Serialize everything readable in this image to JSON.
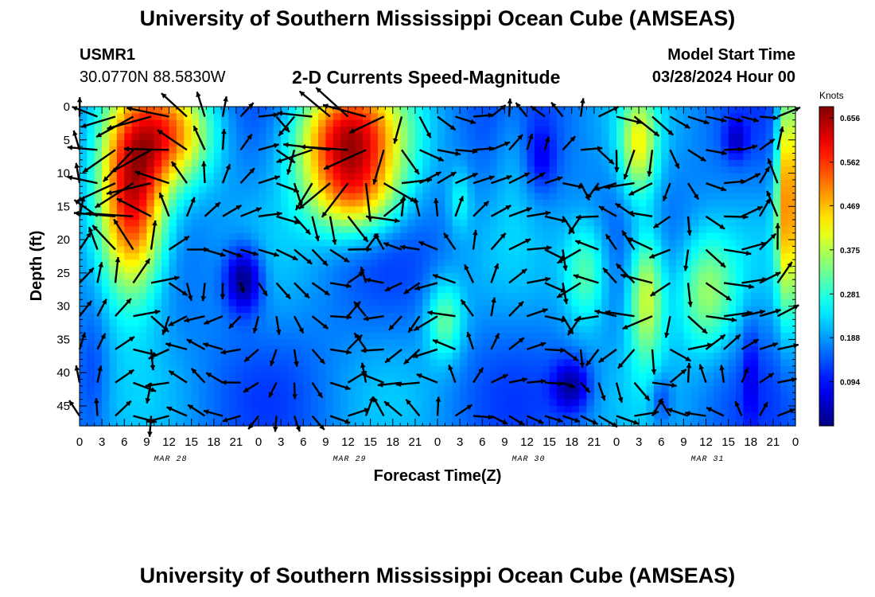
{
  "header": {
    "title": "University of Southern Mississippi Ocean Cube (AMSEAS)",
    "station_id": "USMR1",
    "coordinates": "30.0770N  88.5830W",
    "plot_title": "2-D Currents Speed-Magnitude",
    "model_start_label": "Model Start Time",
    "model_start_value": "03/28/2024 Hour 00"
  },
  "footer": {
    "title": "University of Southern Mississippi Ocean Cube (AMSEAS)"
  },
  "chart_data": {
    "type": "heatmap",
    "xlabel": "Forecast Time(Z)",
    "ylabel": "Depth (ft)",
    "x_tick_labels": [
      "0",
      "3",
      "6",
      "9",
      "12",
      "15",
      "18",
      "21",
      "0",
      "3",
      "6",
      "9",
      "12",
      "15",
      "18",
      "21",
      "0",
      "3",
      "6",
      "9",
      "12",
      "15",
      "18",
      "21",
      "0",
      "3",
      "6",
      "9",
      "12",
      "15",
      "18",
      "21",
      "0"
    ],
    "x_range_hours": [
      0,
      96
    ],
    "date_labels": [
      {
        "label": "MAR 28",
        "hour": 12
      },
      {
        "label": "MAR 29",
        "hour": 36
      },
      {
        "label": "MAR 30",
        "hour": 60
      },
      {
        "label": "MAR 31",
        "hour": 84
      }
    ],
    "y_ticks": [
      0,
      5,
      10,
      15,
      20,
      25,
      30,
      35,
      40,
      45
    ],
    "y_range": [
      0,
      48
    ],
    "y_reversed": true,
    "colorbar": {
      "unit": "Knots",
      "min": 0.0,
      "max": 0.68,
      "tick_values": [
        0.094,
        0.188,
        0.281,
        0.375,
        0.469,
        0.562,
        0.656
      ],
      "tick_labels": [
        "0.094",
        "0.188",
        "0.281",
        "0.375",
        "0.469",
        "0.562",
        "0.656"
      ],
      "colormap": "jet"
    },
    "speed_features_knots": [
      {
        "hour_center": 7,
        "depth_center": 15,
        "hour_spread": 4.5,
        "depth_spread": 14,
        "speed": 0.45
      },
      {
        "hour_center": 12,
        "depth_center": 4,
        "hour_spread": 6,
        "depth_spread": 8,
        "speed": 0.3
      },
      {
        "hour_center": 36,
        "depth_center": 5,
        "hour_spread": 7,
        "depth_spread": 9,
        "speed": 0.45
      },
      {
        "hour_center": 37,
        "depth_center": 14,
        "hour_spread": 6,
        "depth_spread": 6,
        "speed": 0.2
      },
      {
        "hour_center": 49,
        "depth_center": 32,
        "hour_spread": 2.5,
        "depth_spread": 6,
        "speed": 0.15
      },
      {
        "hour_center": 51,
        "depth_center": 14,
        "hour_spread": 1.5,
        "depth_spread": 5,
        "speed": 0.08
      },
      {
        "hour_center": 58,
        "depth_center": 5,
        "hour_spread": 2.5,
        "depth_spread": 12,
        "speed": 0.05
      },
      {
        "hour_center": 68,
        "depth_center": 25,
        "hour_spread": 3,
        "depth_spread": 8,
        "speed": 0.15
      },
      {
        "hour_center": 75,
        "depth_center": 6,
        "hour_spread": 2.5,
        "depth_spread": 8,
        "speed": 0.22
      },
      {
        "hour_center": 76,
        "depth_center": 28,
        "hour_spread": 2.5,
        "depth_spread": 10,
        "speed": 0.25
      },
      {
        "hour_center": 84,
        "depth_center": 28,
        "hour_spread": 4,
        "depth_spread": 9,
        "speed": 0.18
      },
      {
        "hour_center": 95,
        "depth_center": 12,
        "hour_spread": 1.5,
        "depth_spread": 18,
        "speed": 0.35
      }
    ],
    "slow_features_knots": [
      {
        "hour_center": 22,
        "depth_center": 26,
        "hour_spread": 2.5,
        "depth_spread": 5,
        "speed": -0.2
      },
      {
        "hour_center": 66,
        "depth_center": 42,
        "hour_spread": 2.5,
        "depth_spread": 4,
        "speed": -0.15
      },
      {
        "hour_center": 62,
        "depth_center": 8,
        "hour_spread": 2,
        "depth_spread": 5,
        "speed": -0.08
      },
      {
        "hour_center": 88,
        "depth_center": 5,
        "hour_spread": 1.5,
        "depth_spread": 3,
        "speed": -0.1
      },
      {
        "hour_center": 78,
        "depth_center": 44,
        "hour_spread": 1.5,
        "depth_spread": 4,
        "speed": -0.08
      },
      {
        "hour_center": 90,
        "depth_center": 40,
        "hour_spread": 1,
        "depth_spread": 8,
        "speed": -0.07
      },
      {
        "hour_center": 2,
        "depth_center": 40,
        "hour_spread": 2,
        "depth_spread": 10,
        "speed": -0.05
      }
    ],
    "vector_grid": {
      "hour_start": 0,
      "hour_step": 2.4,
      "hour_count": 40,
      "depth_start": 1.5,
      "depth_step": 5,
      "depth_count": 10,
      "direction_model": "smooth rotating field; arrow length proportional to speed"
    }
  }
}
